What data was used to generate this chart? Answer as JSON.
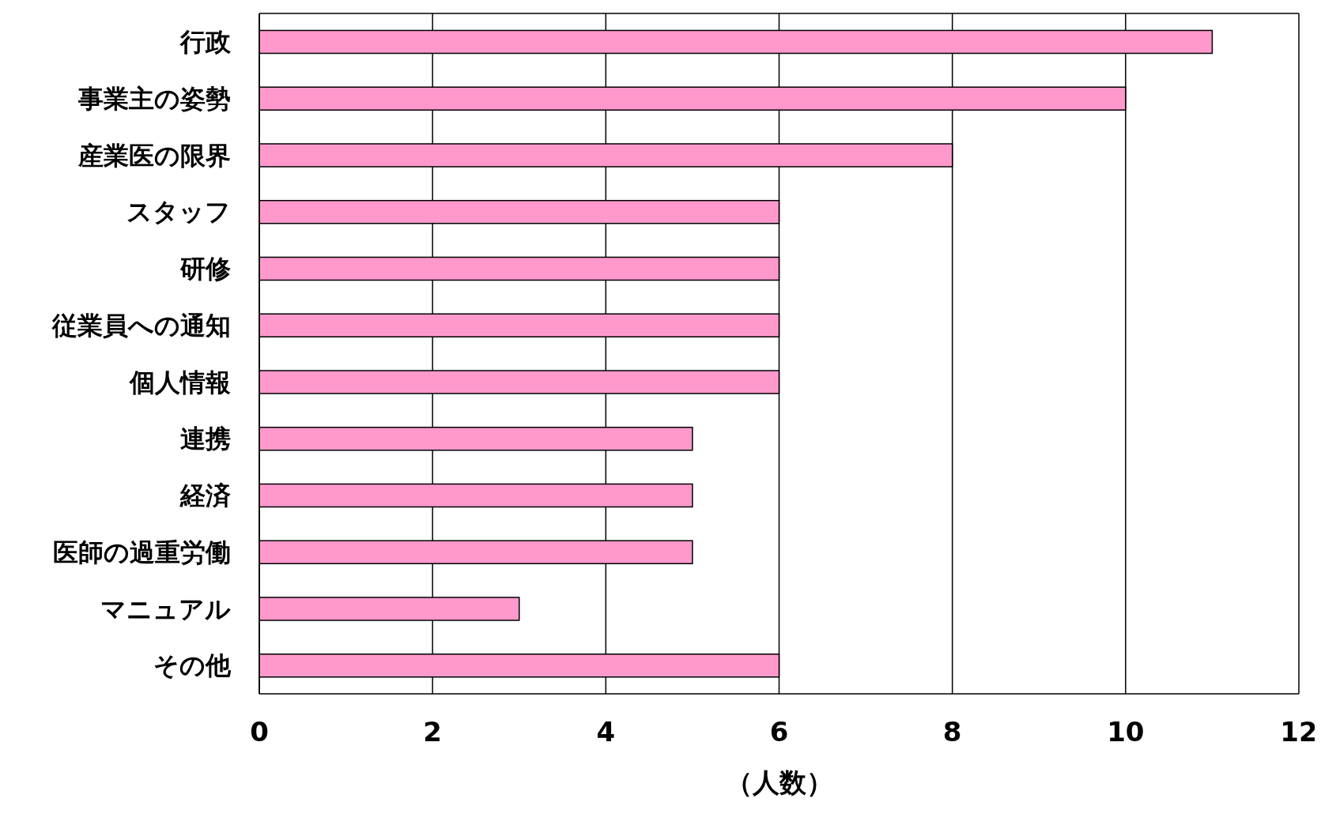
{
  "chart_data": {
    "type": "bar",
    "orientation": "horizontal",
    "xlabel": "（人数）",
    "categories": [
      "行政",
      "事業主の姿勢",
      "産業医の限界",
      "スタッフ",
      "研修",
      "従業員への通知",
      "個人情報",
      "連携",
      "経済",
      "医師の過重労働",
      "マニュアル",
      "その他"
    ],
    "values": [
      11,
      10,
      8,
      6,
      6,
      6,
      6,
      5,
      5,
      5,
      3,
      6
    ],
    "color": "#ff99cc",
    "xlim": [
      0,
      12
    ],
    "xticks": [
      0,
      2,
      4,
      6,
      8,
      10,
      12
    ],
    "grid": "x"
  }
}
